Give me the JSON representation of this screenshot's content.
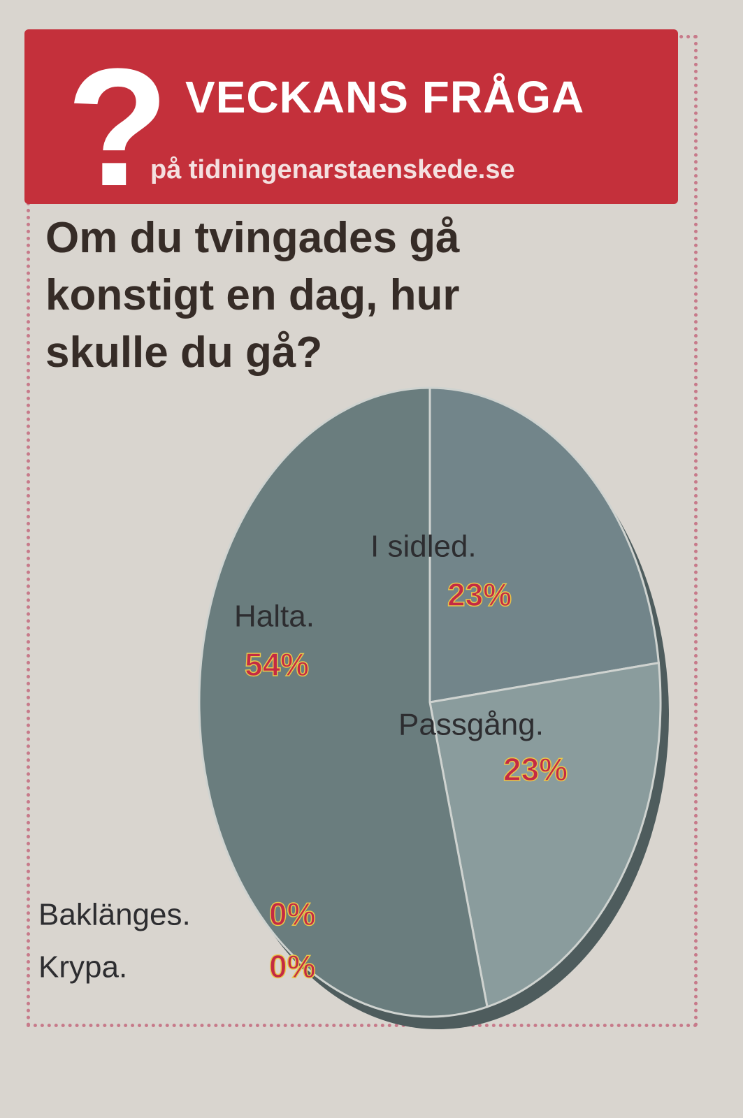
{
  "chart_data": {
    "type": "pie",
    "badge": "?",
    "title": "VECKANS FRÅGA",
    "subtitle": "på tidningenarstaenskede.se",
    "question": "Om du tvingades gå konstigt en dag, hur skulle du gå?",
    "categories": [
      "Halta.",
      "I sidled.",
      "Passgång.",
      "Baklänges.",
      "Krypa."
    ],
    "values": [
      54,
      23,
      23,
      0,
      0
    ],
    "value_labels": [
      "54%",
      "23%",
      "23%",
      "0%",
      "0%"
    ],
    "colors": [
      "#6a7d7e",
      "#72858a",
      "#8a9c9d",
      "#6a7d7e",
      "#6a7d7e"
    ]
  }
}
